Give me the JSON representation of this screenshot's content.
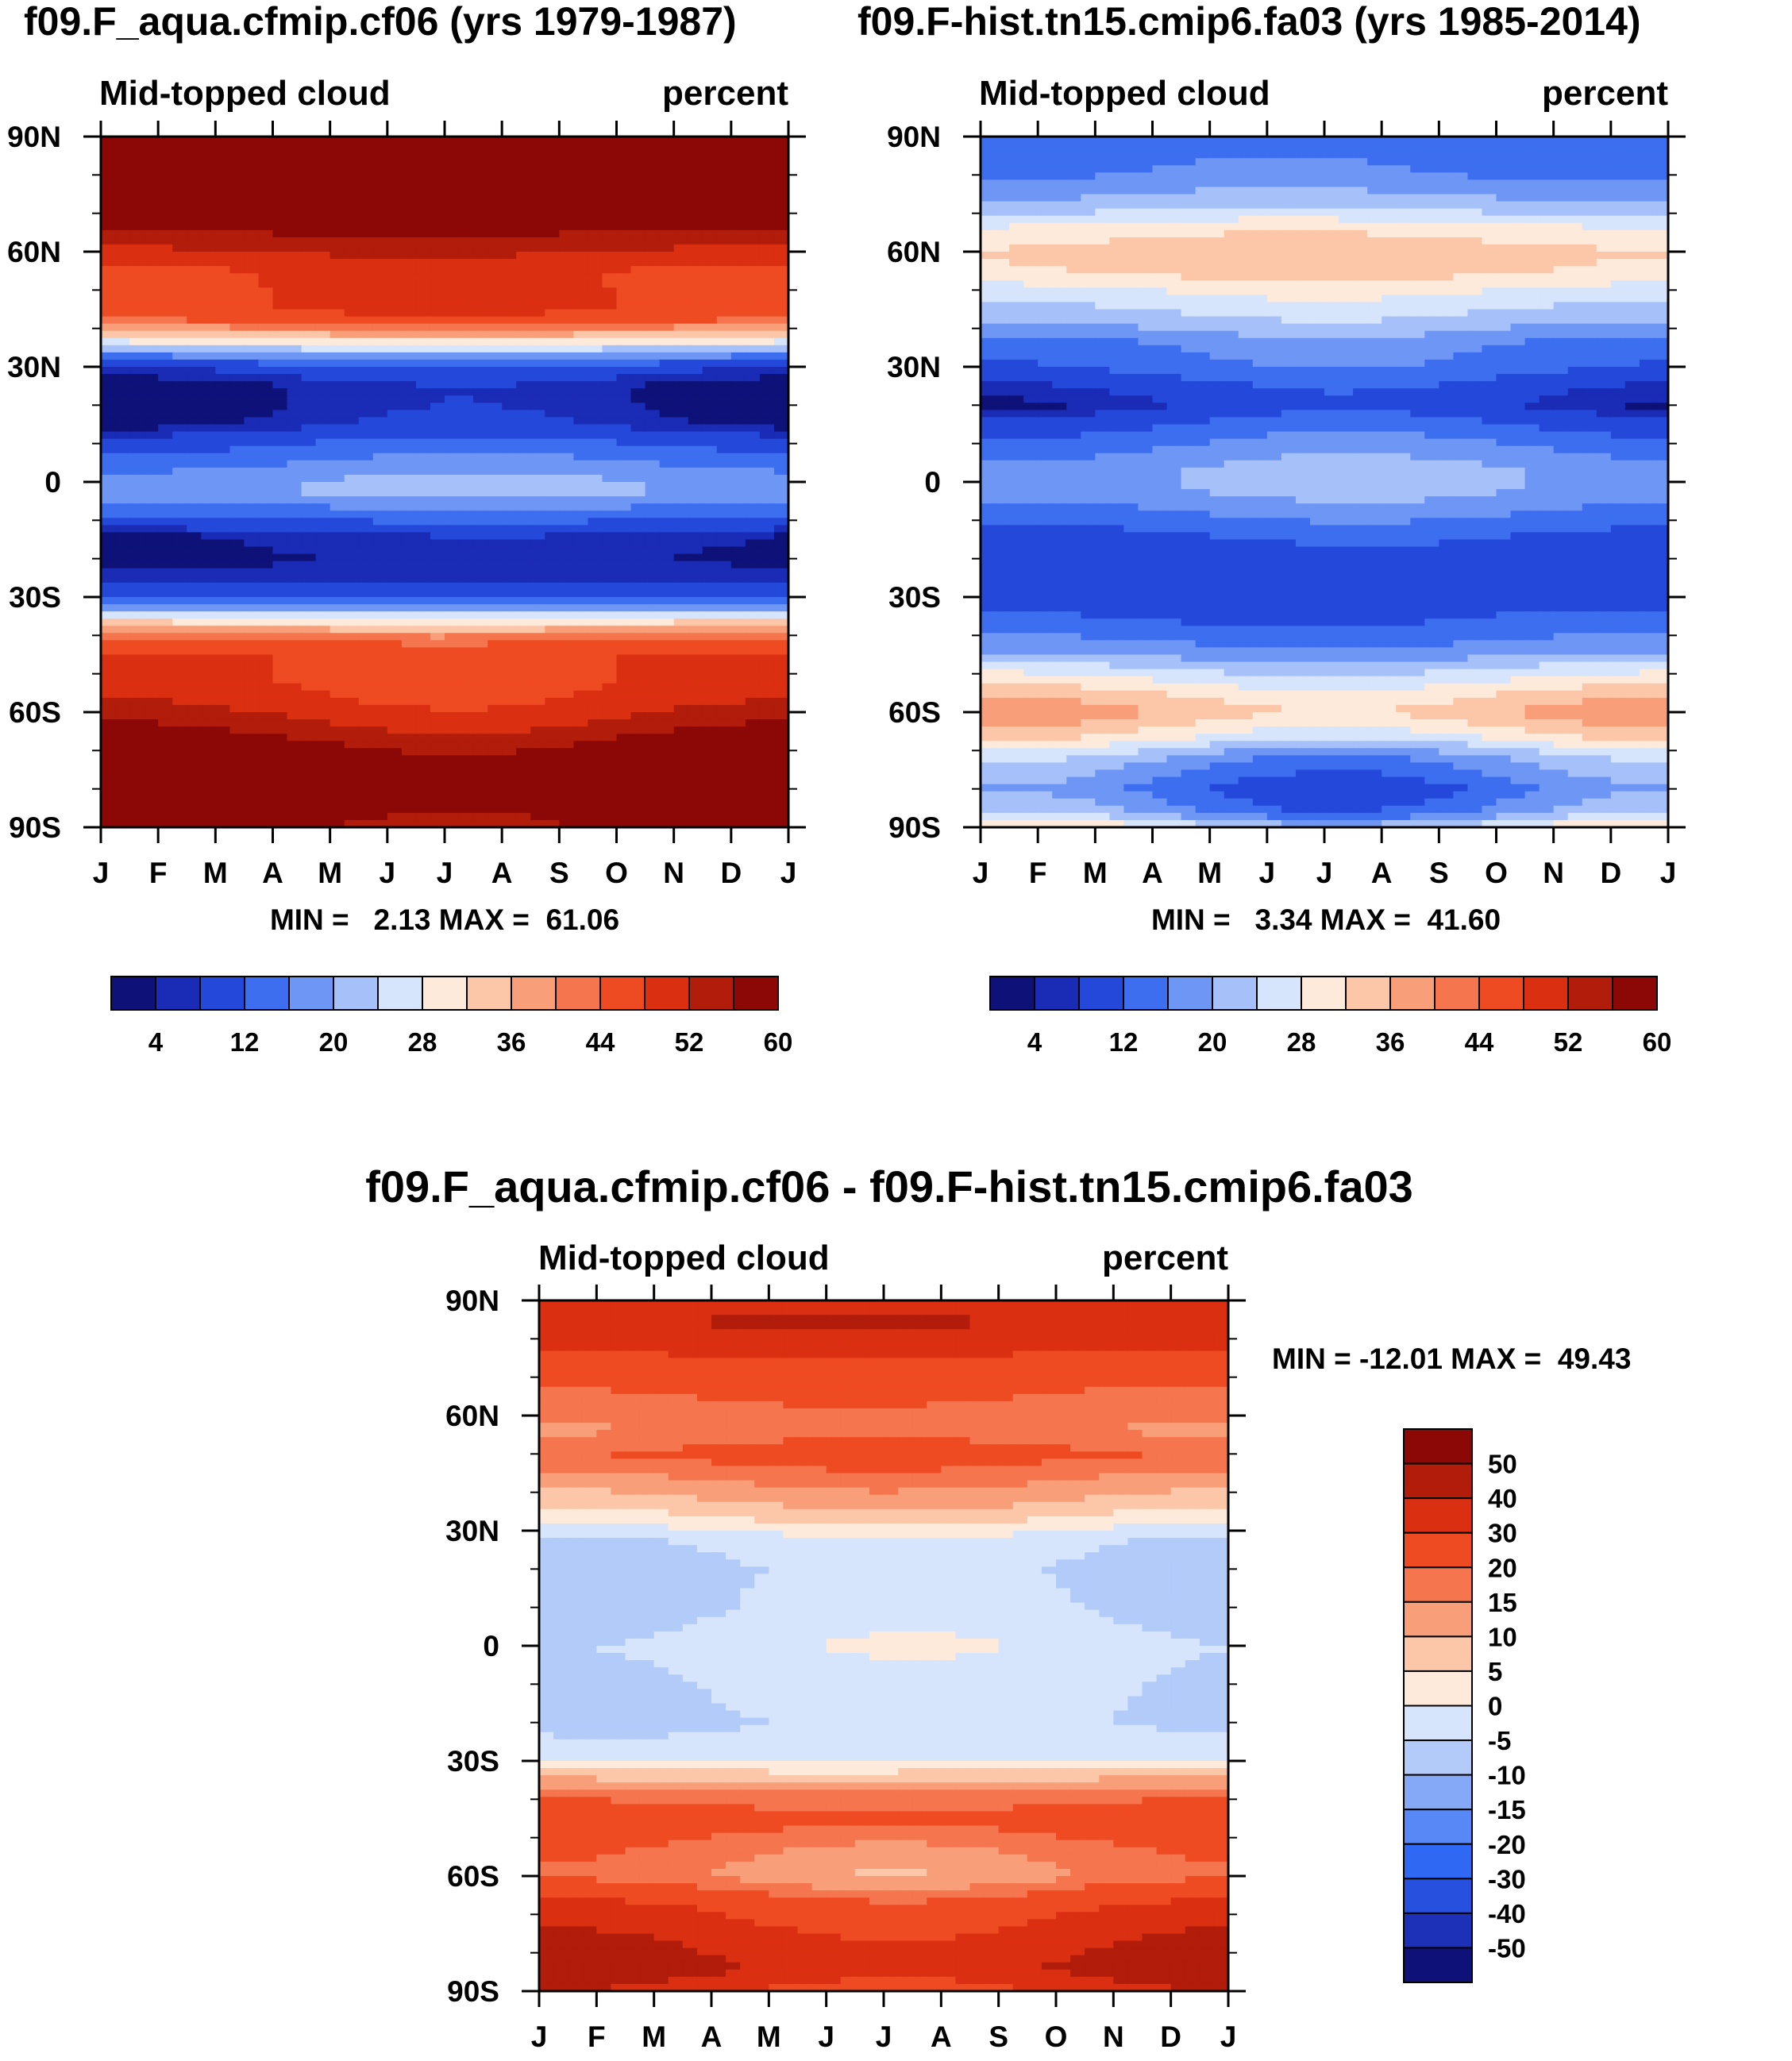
{
  "figure": {
    "panel_titles": [
      "f09.F_aqua.cfmip.cf06 (yrs 1979-1987)",
      "f09.F-hist.tn15.cmip6.fa03 (yrs 1985-2014)"
    ],
    "diff_title": "f09.F_aqua.cfmip.cf06 - f09.F-hist.tn15.cmip6.fa03"
  },
  "colors": {
    "abs_palette": [
      "#0d1178",
      "#1a2bb5",
      "#2448d9",
      "#3d6ef0",
      "#6e96f5",
      "#a6c0fa",
      "#d6e5fb",
      "#fdeadb",
      "#fcc7a9",
      "#f89e78",
      "#f4754e",
      "#ef4b23",
      "#db2f12",
      "#b11d0a",
      "#8b0806"
    ],
    "diff_palette": [
      "#0d1178",
      "#1d31b8",
      "#2650dd",
      "#2f68f2",
      "#5888f5",
      "#85a9f7",
      "#b3cbf9",
      "#d6e5fb",
      "#fdeadb",
      "#fcc7a9",
      "#f89e78",
      "#f4754e",
      "#ef4b23",
      "#db2f12",
      "#b11d0a",
      "#8b0806"
    ]
  },
  "chart_data": [
    {
      "type": "heatmap",
      "id": "control",
      "title": "f09.F_aqua.cfmip.cf06 (yrs 1979-1987)",
      "left_label": "Mid-topped cloud",
      "right_label": "percent",
      "x_ticks": [
        "J",
        "F",
        "M",
        "A",
        "M",
        "J",
        "J",
        "A",
        "S",
        "O",
        "N",
        "D",
        "J"
      ],
      "y_ticks": [
        "90N",
        "60N",
        "30N",
        "0",
        "30S",
        "60S",
        "90S"
      ],
      "y_range": [
        -90,
        90
      ],
      "min_max_text": "MIN =   2.13 MAX =  61.06",
      "min": 2.13,
      "max": 61.06,
      "colorbar_levels": [
        2,
        4,
        8,
        12,
        16,
        20,
        24,
        28,
        32,
        36,
        40,
        44,
        48,
        52,
        56,
        60
      ],
      "colorbar_labels": [
        "4",
        "12",
        "20",
        "28",
        "36",
        "44",
        "52",
        "60"
      ],
      "zonal_profile": {
        "lat": [
          -90,
          -83,
          -76,
          -70,
          -64,
          -58,
          -52,
          -46,
          -42,
          -39,
          -36,
          -33,
          -30,
          -25,
          -20,
          -14,
          -8,
          -3,
          0,
          5,
          10,
          15,
          20,
          25,
          30,
          33,
          36,
          38,
          40,
          42,
          45,
          50,
          55,
          60,
          65,
          70,
          76,
          82,
          90
        ],
        "value": [
          54,
          58,
          58,
          55,
          50,
          46,
          44,
          44,
          41,
          34,
          26,
          16,
          6,
          3,
          2,
          3,
          10,
          16,
          16,
          12,
          8,
          3,
          2,
          2,
          6,
          14,
          24,
          30,
          36,
          41,
          44,
          44,
          44,
          48,
          52,
          56,
          58,
          58,
          56
        ]
      },
      "season_amplitude": 3
    },
    {
      "type": "heatmap",
      "id": "test",
      "title": "f09.F-hist.tn15.cmip6.fa03 (yrs 1985-2014)",
      "left_label": "Mid-topped cloud",
      "right_label": "percent",
      "x_ticks": [
        "J",
        "F",
        "M",
        "A",
        "M",
        "J",
        "J",
        "A",
        "S",
        "O",
        "N",
        "D",
        "J"
      ],
      "y_ticks": [
        "90N",
        "60N",
        "30N",
        "0",
        "30S",
        "60S",
        "90S"
      ],
      "y_range": [
        -90,
        90
      ],
      "min_max_text": "MIN =   3.34 MAX =  41.60",
      "min": 3.34,
      "max": 41.6,
      "colorbar_levels": [
        2,
        4,
        8,
        12,
        16,
        20,
        24,
        28,
        32,
        36,
        40,
        44,
        48,
        52,
        56,
        60
      ],
      "colorbar_labels": [
        "4",
        "12",
        "20",
        "28",
        "36",
        "44",
        "52",
        "60"
      ],
      "zonal_profile": {
        "lat": [
          -90,
          -86,
          -80,
          -72,
          -66,
          -60,
          -55,
          -50,
          -44,
          -36,
          -25,
          -15,
          -8,
          -2,
          3,
          8,
          15,
          20,
          25,
          30,
          36,
          42,
          50,
          55,
          60,
          66,
          72,
          80,
          86,
          90
        ],
        "value": [
          24,
          14,
          10,
          16,
          26,
          32,
          28,
          22,
          14,
          8,
          6,
          7,
          12,
          16,
          16,
          13,
          8,
          4,
          6,
          10,
          12,
          18,
          24,
          29,
          30,
          26,
          18,
          12,
          10,
          10
        ]
      },
      "season_amplitude": 4
    },
    {
      "type": "heatmap",
      "id": "difference",
      "title": "f09.F_aqua.cfmip.cf06 - f09.F-hist.tn15.cmip6.fa03",
      "left_label": "Mid-topped cloud",
      "right_label": "percent",
      "x_ticks": [
        "J",
        "F",
        "M",
        "A",
        "M",
        "J",
        "J",
        "A",
        "S",
        "O",
        "N",
        "D",
        "J"
      ],
      "y_ticks": [
        "90N",
        "60N",
        "30N",
        "0",
        "30S",
        "60S",
        "90S"
      ],
      "y_range": [
        -90,
        90
      ],
      "min_max_text": "MIN = -12.01 MAX =  49.43",
      "min": -12.01,
      "max": 49.43,
      "colorbar_levels": [
        -50,
        -40,
        -30,
        -20,
        -15,
        -10,
        -5,
        0,
        5,
        10,
        15,
        20,
        30,
        40,
        50
      ],
      "colorbar_labels": [
        "50",
        "40",
        "30",
        "20",
        "15",
        "10",
        "5",
        "0",
        "-5",
        "-10",
        "-15",
        "-20",
        "-30",
        "-40",
        "-50"
      ],
      "zonal_profile": {
        "lat": [
          -90,
          -84,
          -76,
          -68,
          -60,
          -52,
          -45,
          -38,
          -33,
          -29,
          -20,
          -10,
          0,
          10,
          20,
          28,
          32,
          36,
          42,
          50,
          56,
          62,
          68,
          76,
          84,
          90
        ],
        "value": [
          32,
          42,
          36,
          28,
          14,
          18,
          24,
          16,
          6,
          -3,
          -5,
          -4,
          -2,
          -5,
          -6,
          -3,
          3,
          8,
          14,
          22,
          16,
          18,
          22,
          30,
          40,
          36
        ]
      },
      "season_amplitude": 5
    }
  ]
}
